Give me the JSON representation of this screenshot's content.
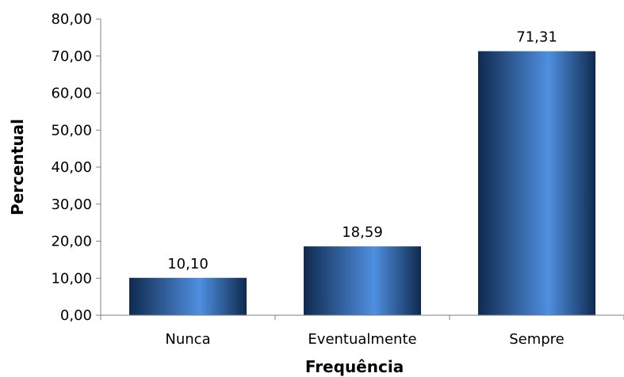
{
  "chart_data": {
    "type": "bar",
    "categories": [
      "Nunca",
      "Eventualmente",
      "Sempre"
    ],
    "values": [
      10.1,
      18.59,
      71.31
    ],
    "value_labels": [
      "10,10",
      "18,59",
      "71,31"
    ],
    "xlabel": "Frequência",
    "ylabel": "Percentual",
    "ylim": [
      0,
      80
    ],
    "yticks": [
      0,
      10,
      20,
      30,
      40,
      50,
      60,
      70,
      80
    ],
    "ytick_labels": [
      "0,00",
      "10,00",
      "20,00",
      "30,00",
      "40,00",
      "50,00",
      "60,00",
      "70,00",
      "80,00"
    ],
    "grid": false,
    "legend": "none",
    "colors": {
      "bar_dark": "#0f2a4f",
      "bar_light": "#4f8fe0",
      "axis": "#808080"
    }
  }
}
